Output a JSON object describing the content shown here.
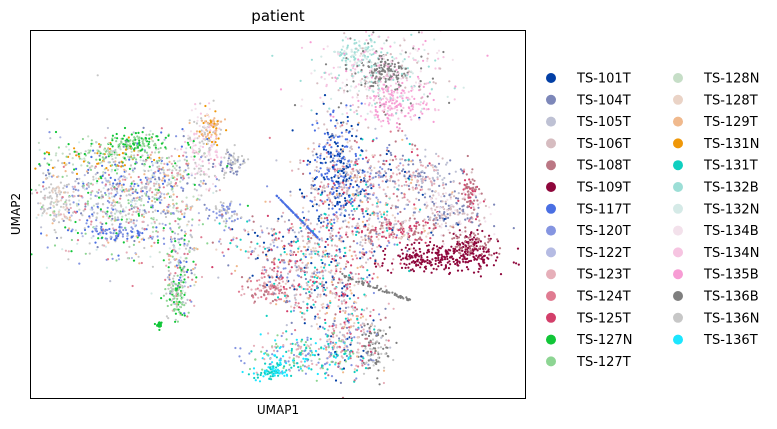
{
  "chart_data": {
    "type": "scatter",
    "title": "patient",
    "xlabel": "UMAP1",
    "ylabel": "UMAP2",
    "xticks": [],
    "yticks": [],
    "grid": false,
    "legend_position": "right-outside",
    "legend_columns": 2,
    "legend": [
      {
        "label": "TS-101T",
        "color": "#023fa5"
      },
      {
        "label": "TS-104T",
        "color": "#7d87b9"
      },
      {
        "label": "TS-105T",
        "color": "#bec1d4"
      },
      {
        "label": "TS-106T",
        "color": "#d6bcc0"
      },
      {
        "label": "TS-108T",
        "color": "#bb7784"
      },
      {
        "label": "TS-109T",
        "color": "#8e063b"
      },
      {
        "label": "TS-117T",
        "color": "#4a6fe3"
      },
      {
        "label": "TS-120T",
        "color": "#8595e1"
      },
      {
        "label": "TS-122T",
        "color": "#b5bbe3"
      },
      {
        "label": "TS-123T",
        "color": "#e6afb9"
      },
      {
        "label": "TS-124T",
        "color": "#e07b91"
      },
      {
        "label": "TS-125T",
        "color": "#d33f6a"
      },
      {
        "label": "TS-127N",
        "color": "#11c638"
      },
      {
        "label": "TS-127T",
        "color": "#8dd593"
      },
      {
        "label": "TS-128N",
        "color": "#c6dec7"
      },
      {
        "label": "TS-128T",
        "color": "#ead3c6"
      },
      {
        "label": "TS-129T",
        "color": "#f0b98d"
      },
      {
        "label": "TS-131N",
        "color": "#ef9708"
      },
      {
        "label": "TS-131T",
        "color": "#0fcfc0"
      },
      {
        "label": "TS-132B",
        "color": "#9cded6"
      },
      {
        "label": "TS-132N",
        "color": "#d5eae7"
      },
      {
        "label": "TS-134B",
        "color": "#f3e1eb"
      },
      {
        "label": "TS-134N",
        "color": "#f6c4e1"
      },
      {
        "label": "TS-135B",
        "color": "#f79cd4"
      },
      {
        "label": "TS-136B",
        "color": "#7f7f7f"
      },
      {
        "label": "TS-136N",
        "color": "#c7c7c7"
      },
      {
        "label": "TS-136T",
        "color": "#1ce6ff"
      }
    ]
  }
}
